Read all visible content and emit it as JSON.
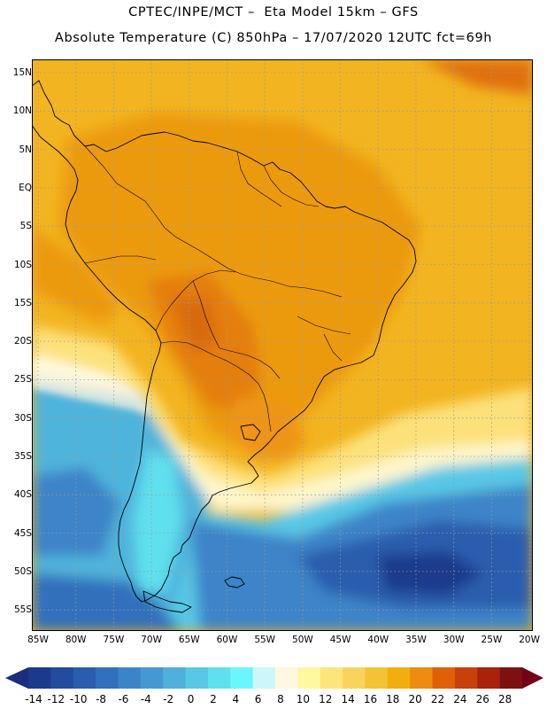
{
  "header": {
    "title_line1": "CPTEC/INPE/MCT –  Eta Model 15km – GFS",
    "title_line2": "Absolute Temperature (C) 850hPa – 17/07/2020 12UTC fct=69h"
  },
  "axes": {
    "lat_labels": [
      "15N",
      "10N",
      "5N",
      "EQ",
      "5S",
      "10S",
      "15S",
      "20S",
      "25S",
      "30S",
      "35S",
      "40S",
      "45S",
      "50S",
      "55S"
    ],
    "lon_labels": [
      "85W",
      "80W",
      "75W",
      "70W",
      "65W",
      "60W",
      "55W",
      "50W",
      "45W",
      "40W",
      "35W",
      "30W",
      "25W",
      "20W"
    ]
  },
  "legend": {
    "labels": [
      "-14",
      "-12",
      "-10",
      "-8",
      "-6",
      "-4",
      "-2",
      "0",
      "2",
      "4",
      "6",
      "8",
      "10",
      "12",
      "14",
      "16",
      "18",
      "20",
      "22",
      "24",
      "26",
      "28"
    ],
    "colors": [
      "#1c3a8c",
      "#234b9e",
      "#2a5dae",
      "#326fbc",
      "#3c84c8",
      "#4698d2",
      "#4fb0dc",
      "#58c8e6",
      "#5ee0ee",
      "#6af6fa",
      "#ccf6fa",
      "#fef8e2",
      "#fef8a0",
      "#fce67a",
      "#f8d45c",
      "#f4c236",
      "#f2ae0e",
      "#ec8c10",
      "#e06008",
      "#c8400c",
      "#a8220c",
      "#7c1210"
    ],
    "under_color": "#1a2e7c",
    "over_color": "#760018"
  }
}
